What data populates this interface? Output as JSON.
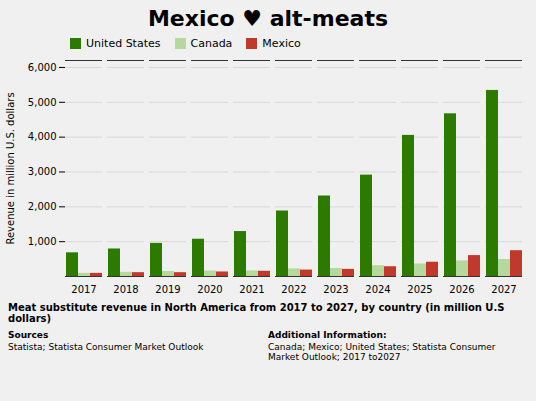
{
  "chart_data": {
    "type": "bar",
    "title": "Mexico ♥ alt-meats",
    "categories": [
      "2017",
      "2018",
      "2019",
      "2020",
      "2021",
      "2022",
      "2023",
      "2024",
      "2025",
      "2026",
      "2027"
    ],
    "series": [
      {
        "name": "United States",
        "color": "#2d7a00",
        "values": [
          680,
          790,
          950,
          1070,
          1290,
          1880,
          2310,
          2910,
          4050,
          4670,
          5340
        ]
      },
      {
        "name": "Canada",
        "color": "#b5d99c",
        "values": [
          90,
          120,
          145,
          155,
          160,
          220,
          230,
          310,
          360,
          450,
          490
        ]
      },
      {
        "name": "Mexico",
        "color": "#c0392b",
        "values": [
          90,
          110,
          110,
          130,
          150,
          185,
          205,
          280,
          410,
          600,
          740
        ]
      }
    ],
    "ylabel": "Revenue in million U.S. dollars",
    "ylim": [
      0,
      6200
    ],
    "yticks": [
      {
        "value": 1000,
        "label": "1,000"
      },
      {
        "value": 2000,
        "label": "2,000"
      },
      {
        "value": 3000,
        "label": "3,000"
      },
      {
        "value": 4000,
        "label": "4,000"
      },
      {
        "value": 5000,
        "label": "5,000"
      },
      {
        "value": 6000,
        "label": "6,000"
      }
    ],
    "grid": true,
    "legend": "upper left",
    "caption": "Meat substitute revenue in North America from 2017 to 2027, by country (in million U.S dollars)",
    "annotations": [
      {
        "title": "Sources",
        "text": "Statista; Statista Consumer Market Outlook"
      },
      {
        "title": "Additional Information:",
        "text": "Canada; Mexico; United States; Statista Consumer Market Outlook; 2017 to2027"
      }
    ]
  }
}
